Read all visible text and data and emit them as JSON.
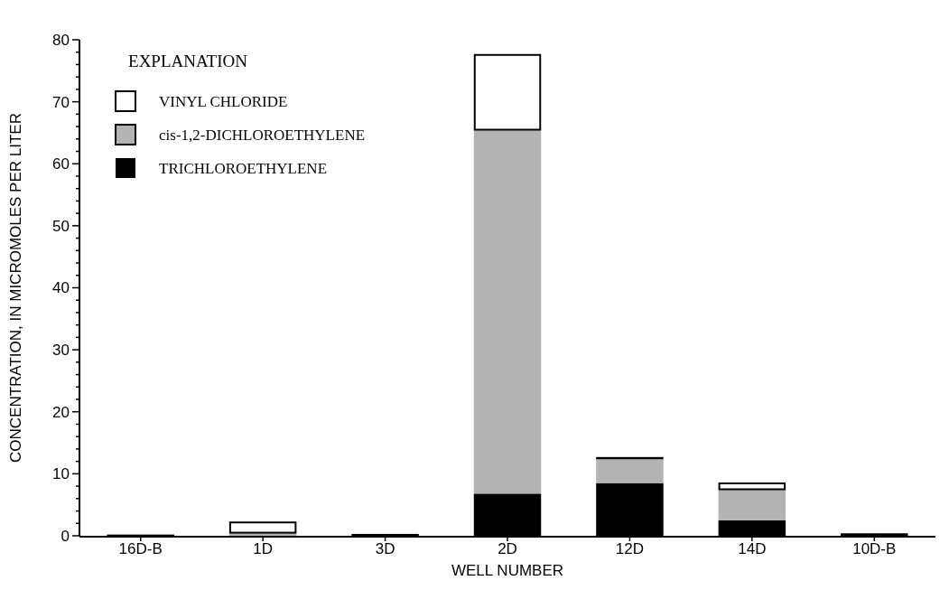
{
  "chart_data": {
    "type": "bar",
    "stacked": true,
    "xlabel": "WELL NUMBER",
    "ylabel": "CONCENTRATION, IN MICROMOLES PER LITER",
    "legend_title": "EXPLANATION",
    "legend": "top left",
    "grid": false,
    "categories": [
      "16D-B",
      "1D",
      "3D",
      "2D",
      "12D",
      "14D",
      "10D-B"
    ],
    "series": [
      {
        "name": "TRICHLOROETHYLENE",
        "color": "#000000",
        "values": [
          0.2,
          null,
          0.3,
          6.8,
          8.5,
          2.5,
          0.4
        ]
      },
      {
        "name": "cis-1,2-DICHLOROETHYLENE",
        "color": "#b3b3b3",
        "values": [
          0,
          0.5,
          0,
          58.7,
          4.0,
          5.0,
          0
        ]
      },
      {
        "name": "VINYL CHLORIDE",
        "color": "#ffffff",
        "values": [
          0,
          1.8,
          0,
          12.2,
          0.2,
          1.1,
          0
        ]
      }
    ],
    "ylim": [
      0,
      80
    ],
    "yticks": [
      0,
      {
        "value": 2,
        "label": null
      },
      {
        "value": 4,
        "label": null
      },
      {
        "value": 6,
        "label": null
      },
      {
        "value": 8,
        "label": null
      },
      10,
      {
        "value": 12,
        "label": null
      },
      {
        "value": 14,
        "label": null
      },
      {
        "value": 16,
        "label": null
      },
      {
        "value": 18,
        "label": null
      },
      20,
      {
        "value": 22,
        "label": null
      },
      {
        "value": 24,
        "label": null
      },
      {
        "value": 26,
        "label": null
      },
      {
        "value": 28,
        "label": null
      },
      30,
      {
        "value": 32,
        "label": null
      },
      {
        "value": 34,
        "label": null
      },
      {
        "value": 36,
        "label": null
      },
      {
        "value": 38,
        "label": null
      },
      40,
      {
        "value": 42,
        "label": null
      },
      {
        "value": 44,
        "label": null
      },
      {
        "value": 46,
        "label": null
      },
      {
        "value": 48,
        "label": null
      },
      50,
      {
        "value": 52,
        "label": null
      },
      {
        "value": 54,
        "label": null
      },
      {
        "value": 56,
        "label": null
      },
      {
        "value": 58,
        "label": null
      },
      60,
      {
        "value": 62,
        "label": null
      },
      {
        "value": 64,
        "label": null
      },
      {
        "value": 66,
        "label": null
      },
      {
        "value": 68,
        "label": null
      },
      70,
      {
        "value": 72,
        "label": null
      },
      {
        "value": 74,
        "label": null
      },
      {
        "value": 76,
        "label": null
      },
      {
        "value": 78,
        "label": null
      },
      80
    ]
  }
}
